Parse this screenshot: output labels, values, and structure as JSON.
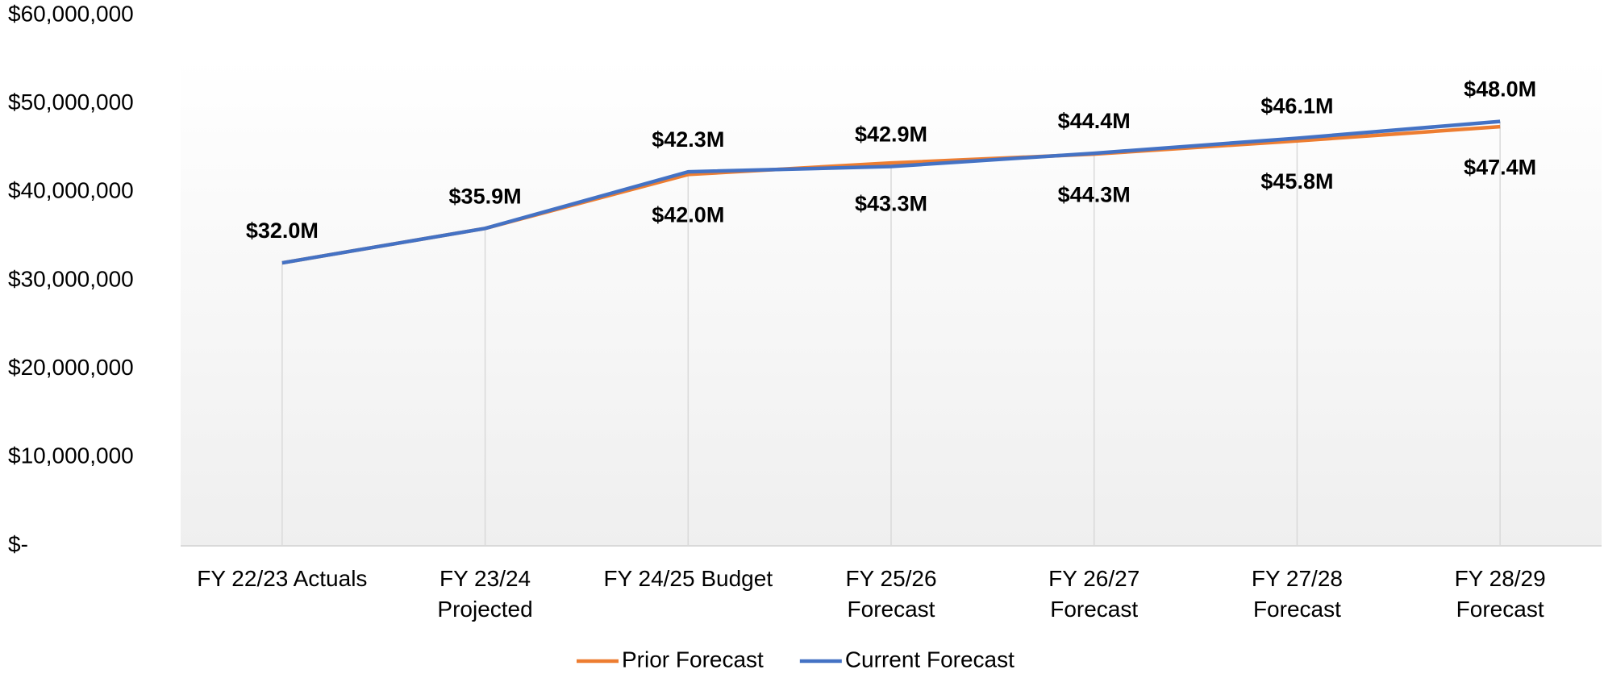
{
  "chart_data": {
    "type": "line",
    "categories": [
      "FY 22/23 Actuals",
      "FY 23/24\nProjected",
      "FY 24/25   Budget",
      "FY 25/26\nForecast",
      "FY 26/27\nForecast",
      "FY 27/28\nForecast",
      "FY 28/29\nForecast"
    ],
    "series": [
      {
        "name": "Prior Forecast",
        "color": "#ED7D31",
        "values": [
          32000000,
          35900000,
          42000000,
          43300000,
          44300000,
          45800000,
          47400000
        ],
        "value_labels": [
          null,
          null,
          "$42.0M",
          "$43.3M",
          "$44.3M",
          "$45.8M",
          "$47.4M"
        ]
      },
      {
        "name": "Current Forecast",
        "color": "#4472C4",
        "values": [
          32000000,
          35900000,
          42300000,
          42900000,
          44400000,
          46100000,
          48000000
        ],
        "value_labels": [
          "$32.0M",
          "$35.9M",
          "$42.3M",
          "$42.9M",
          "$44.4M",
          "$46.1M",
          "$48.0M"
        ]
      }
    ],
    "ylim": [
      0,
      60000000
    ],
    "yticks": [
      {
        "value": 0,
        "label": "$-"
      },
      {
        "value": 10000000,
        "label": "$10,000,000"
      },
      {
        "value": 20000000,
        "label": "$20,000,000"
      },
      {
        "value": 30000000,
        "label": "$30,000,000"
      },
      {
        "value": 40000000,
        "label": "$40,000,000"
      },
      {
        "value": 50000000,
        "label": "$50,000,000"
      },
      {
        "value": 60000000,
        "label": "$60,000,000"
      }
    ],
    "legend": "bottom"
  }
}
